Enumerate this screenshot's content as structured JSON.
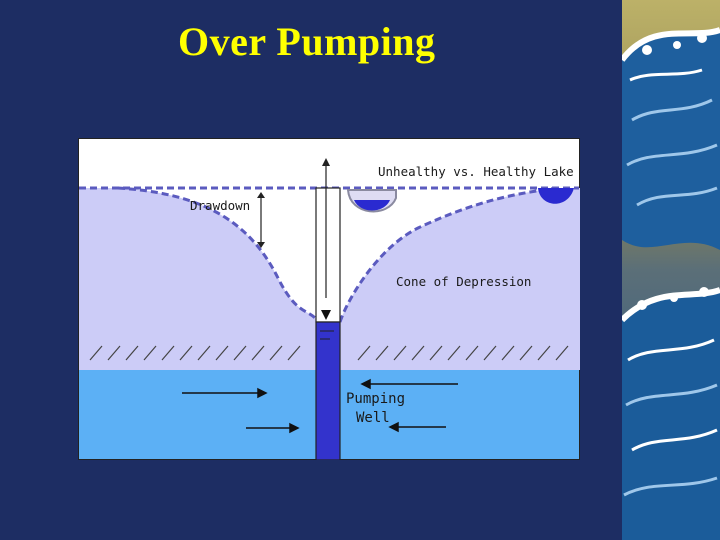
{
  "slide": {
    "title": "Over Pumping"
  },
  "diagram": {
    "labels": {
      "lake": "Unhealthy vs. Healthy Lake",
      "drawdown": "Drawdown",
      "cone": "Cone of Depression",
      "well_line1": "Pumping",
      "well_line2": "Well"
    },
    "colors": {
      "background": "#1d2d63",
      "title": "#ffff00",
      "unsaturated_zone": "#ffffff",
      "saturated_zone": "#ccccf7",
      "aquifer": "#5cb0f5",
      "well": "#3333cc",
      "water_table": "#5b5bbf",
      "lake_water": "#2a2ad0",
      "wave_decor": "#1e5f9e"
    }
  }
}
